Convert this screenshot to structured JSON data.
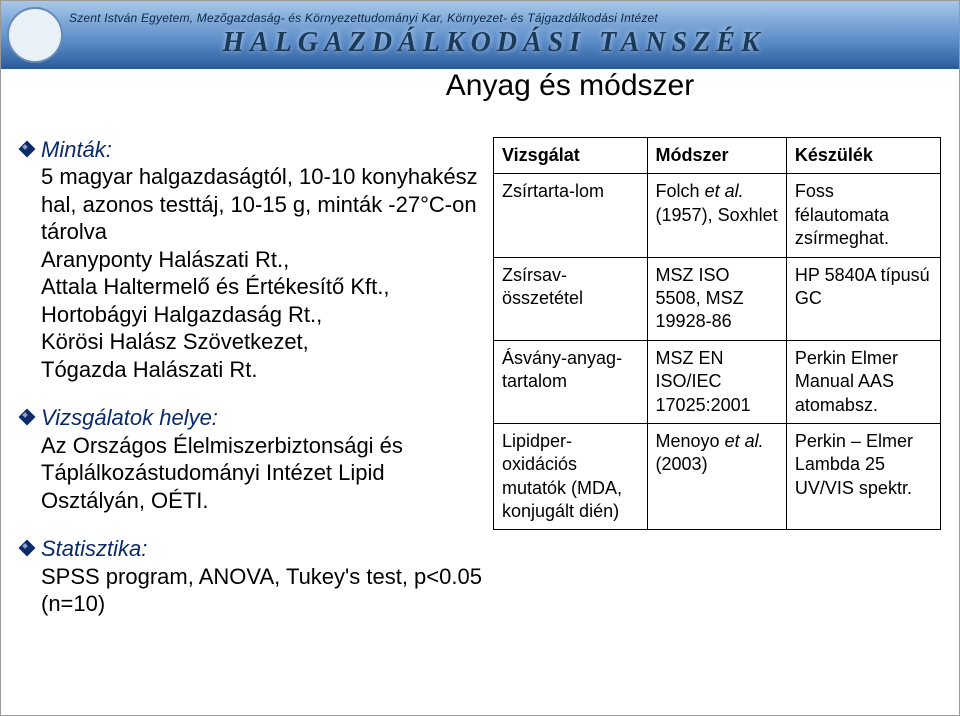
{
  "header": {
    "logo_text": "",
    "sub": "Szent István Egyetem, Mezőgazdaság- és Környezettudományi Kar, Környezet- és Tájgazdálkodási Intézet",
    "title": "HALGAZDÁLKODÁSI TANSZÉK"
  },
  "section_title": "Anyag és módszer",
  "blocks": [
    {
      "title": "Minták:",
      "body": "5 magyar halgazdaságtól, 10-10 konyhakész hal, azonos testtáj, 10-15 g, minták -27°C-on tárolva",
      "sub": [
        "Aranyponty Halászati Rt.,",
        "Attala Haltermelő és Értékesítő Kft.,",
        "Hortobágyi Halgazdaság Rt.,",
        "Körösi Halász Szövetkezet,",
        "Tógazda Halászati Rt."
      ]
    },
    {
      "title": "Vizsgálatok helye:",
      "body": "Az Országos Élelmiszerbiztonsági és Táplálkozástudományi Intézet Lipid Osztályán, OÉTI."
    },
    {
      "title": "Statisztika:",
      "body": "SPSS program, ANOVA, Tukey's test, p<0.05 (n=10)"
    }
  ],
  "table": {
    "headers": [
      "Vizsgálat",
      "Módszer",
      "Készülék"
    ],
    "rows": [
      {
        "c0": "Zsírtarta-lom",
        "c1_pre": "Folch ",
        "c1_it": "et al.",
        "c1_post": " (1957), Soxhlet",
        "c2": "Foss félautomata zsírmeghat."
      },
      {
        "c0": "Zsírsav-összetétel",
        "c1": "MSZ ISO 5508, MSZ 19928-86",
        "c2": "HP 5840A típusú GC"
      },
      {
        "c0": "Ásvány-anyag-tartalom",
        "c1": "MSZ EN ISO/IEC 17025:2001",
        "c2": "Perkin Elmer Manual AAS atomabsz."
      },
      {
        "c0": "Lipidper-oxidációs mutatók (MDA, konjugált dién)",
        "c1_pre": "Menoyo ",
        "c1_it": "et al.",
        "c1_post": " (2003)",
        "c2": "Perkin – Elmer Lambda 25 UV/VIS spektr."
      }
    ]
  }
}
